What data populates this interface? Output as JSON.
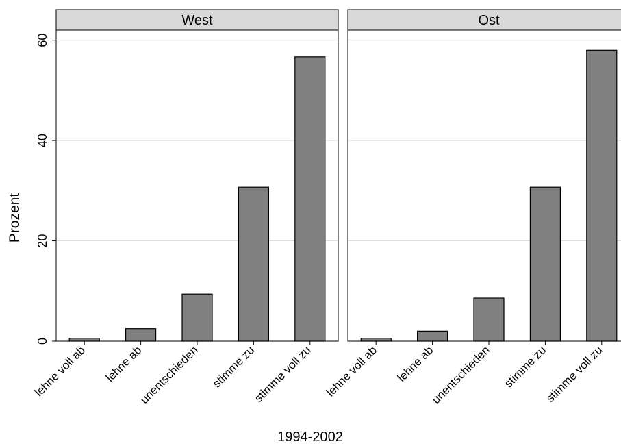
{
  "chart_data": {
    "type": "bar",
    "categories": [
      "lehne voll ab",
      "lehne ab",
      "unentschieden",
      "stimme zu",
      "stimme voll zu"
    ],
    "panels": [
      {
        "name": "West",
        "values": [
          0.6,
          2.5,
          9.4,
          30.7,
          56.7
        ]
      },
      {
        "name": "Ost",
        "values": [
          0.6,
          2.0,
          8.6,
          30.7,
          58.0
        ]
      }
    ],
    "ylabel": "Prozent",
    "xlabel": "1994-2002",
    "yticks": [
      0,
      20,
      40,
      60
    ],
    "ylim": [
      0,
      62
    ],
    "grid": true
  }
}
